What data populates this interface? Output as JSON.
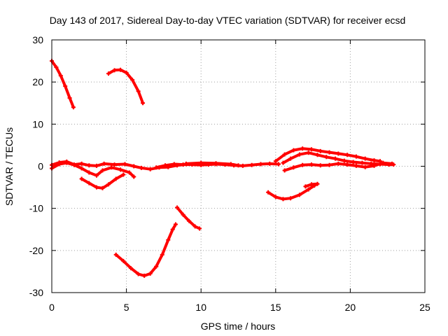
{
  "chart_data": {
    "type": "scatter",
    "title": "Day 143 of 2017, Sidereal Day-to-day VTEC variation (SDTVAR) for receiver ecsd",
    "xlabel": "GPS time / hours",
    "ylabel": "SDTVAR / TECUs",
    "xlim": [
      0,
      25
    ],
    "ylim": [
      -30,
      30
    ],
    "xticks": [
      0,
      5,
      10,
      15,
      20,
      25
    ],
    "yticks": [
      -30,
      -20,
      -10,
      0,
      10,
      20,
      30
    ],
    "xtick_labels": [
      "0",
      "5",
      "10",
      "15",
      "20",
      "25"
    ],
    "ytick_labels": [
      "-30",
      "-20",
      "-10",
      "0",
      "10",
      "20",
      "30"
    ],
    "grid": true,
    "marker_color": "#ff0000",
    "series": [
      {
        "name": "arc-1",
        "points": [
          [
            0.0,
            25.0
          ],
          [
            0.3,
            23.5
          ],
          [
            0.6,
            21.5
          ],
          [
            0.9,
            19.0
          ],
          [
            1.2,
            16.2
          ],
          [
            1.45,
            14.0
          ]
        ]
      },
      {
        "name": "arc-2",
        "points": [
          [
            3.8,
            22.0
          ],
          [
            4.2,
            22.8
          ],
          [
            4.6,
            22.9
          ],
          [
            5.0,
            22.2
          ],
          [
            5.4,
            20.5
          ],
          [
            5.8,
            17.8
          ],
          [
            6.1,
            15.0
          ]
        ]
      },
      {
        "name": "arc-3",
        "points": [
          [
            0.0,
            -0.5
          ],
          [
            0.5,
            0.5
          ],
          [
            1.0,
            0.8
          ],
          [
            1.5,
            0.3
          ],
          [
            2.0,
            -0.5
          ],
          [
            2.5,
            -1.5
          ],
          [
            3.0,
            -2.2
          ],
          [
            3.4,
            -1.0
          ],
          [
            4.0,
            -0.3
          ],
          [
            4.6,
            -0.8
          ],
          [
            5.2,
            -1.5
          ],
          [
            5.5,
            -2.5
          ]
        ]
      },
      {
        "name": "arc-4",
        "points": [
          [
            0.0,
            0.3
          ],
          [
            0.5,
            0.9
          ],
          [
            1.0,
            1.1
          ],
          [
            1.5,
            0.4
          ],
          [
            2.0,
            0.6
          ],
          [
            2.5,
            0.2
          ],
          [
            3.0,
            0.1
          ],
          [
            3.5,
            0.6
          ],
          [
            4.2,
            0.4
          ],
          [
            4.9,
            0.5
          ],
          [
            5.5,
            0.0
          ],
          [
            6.0,
            -0.4
          ],
          [
            6.6,
            -0.7
          ],
          [
            7.2,
            -0.3
          ],
          [
            7.8,
            -0.2
          ],
          [
            8.4,
            0.2
          ],
          [
            9.0,
            0.5
          ],
          [
            9.6,
            0.5
          ]
        ]
      },
      {
        "name": "arc-5",
        "points": [
          [
            2.0,
            -3.0
          ],
          [
            2.5,
            -4.0
          ],
          [
            3.0,
            -5.0
          ],
          [
            3.4,
            -5.2
          ],
          [
            3.8,
            -4.3
          ],
          [
            4.3,
            -3.0
          ],
          [
            4.8,
            -2.0
          ]
        ]
      },
      {
        "name": "arc-6",
        "points": [
          [
            7.0,
            -0.3
          ],
          [
            7.6,
            0.2
          ],
          [
            8.2,
            0.5
          ],
          [
            8.8,
            0.4
          ],
          [
            9.4,
            0.4
          ],
          [
            10.0,
            0.3
          ],
          [
            10.5,
            0.4
          ],
          [
            11.0,
            0.5
          ],
          [
            11.6,
            0.4
          ],
          [
            12.2,
            0.2
          ],
          [
            12.8,
            0.1
          ],
          [
            13.4,
            0.3
          ],
          [
            14.0,
            0.5
          ],
          [
            14.6,
            0.6
          ],
          [
            15.2,
            0.5
          ]
        ]
      },
      {
        "name": "arc-7",
        "points": [
          [
            9.0,
            0.6
          ],
          [
            10.0,
            0.8
          ],
          [
            11.0,
            0.7
          ],
          [
            12.0,
            0.5
          ],
          [
            12.5,
            0.2
          ]
        ]
      },
      {
        "name": "arc-8",
        "points": [
          [
            15.0,
            1.2
          ],
          [
            15.6,
            2.8
          ],
          [
            16.2,
            3.8
          ],
          [
            16.8,
            4.2
          ],
          [
            17.4,
            4.0
          ],
          [
            18.0,
            3.6
          ],
          [
            18.6,
            3.3
          ],
          [
            19.2,
            3.0
          ],
          [
            19.8,
            2.7
          ],
          [
            20.4,
            2.3
          ],
          [
            21.0,
            1.8
          ],
          [
            21.6,
            1.4
          ],
          [
            22.0,
            1.2
          ]
        ]
      },
      {
        "name": "arc-9",
        "points": [
          [
            15.5,
            0.8
          ],
          [
            16.0,
            1.8
          ],
          [
            16.6,
            2.8
          ],
          [
            17.2,
            3.2
          ],
          [
            17.8,
            2.7
          ],
          [
            18.4,
            2.2
          ],
          [
            19.0,
            1.8
          ],
          [
            19.6,
            1.3
          ],
          [
            20.2,
            1.0
          ],
          [
            20.8,
            0.8
          ],
          [
            21.4,
            0.6
          ],
          [
            22.0,
            0.5
          ],
          [
            22.6,
            0.4
          ],
          [
            22.9,
            0.4
          ]
        ]
      },
      {
        "name": "arc-10",
        "points": [
          [
            15.6,
            -1.0
          ],
          [
            16.2,
            -0.3
          ],
          [
            16.8,
            0.3
          ],
          [
            17.4,
            0.4
          ],
          [
            18.0,
            0.2
          ],
          [
            18.6,
            0.3
          ],
          [
            19.2,
            0.6
          ],
          [
            19.8,
            0.4
          ],
          [
            20.4,
            0.1
          ],
          [
            21.0,
            -0.2
          ],
          [
            21.6,
            0.1
          ],
          [
            22.2,
            0.8
          ],
          [
            22.8,
            0.6
          ]
        ]
      },
      {
        "name": "arc-11",
        "points": [
          [
            14.5,
            -6.2
          ],
          [
            15.0,
            -7.3
          ],
          [
            15.5,
            -7.8
          ],
          [
            16.0,
            -7.6
          ],
          [
            16.6,
            -6.8
          ],
          [
            17.2,
            -5.5
          ],
          [
            17.6,
            -4.6
          ]
        ]
      },
      {
        "name": "arc-12",
        "points": [
          [
            17.0,
            -4.8
          ],
          [
            17.4,
            -4.3
          ],
          [
            17.8,
            -4.2
          ]
        ]
      },
      {
        "name": "arc-13",
        "points": [
          [
            4.3,
            -21.0
          ],
          [
            4.8,
            -22.5
          ],
          [
            5.3,
            -24.2
          ],
          [
            5.8,
            -25.6
          ],
          [
            6.2,
            -26.0
          ],
          [
            6.6,
            -25.5
          ],
          [
            7.0,
            -23.8
          ],
          [
            7.4,
            -21.0
          ],
          [
            7.8,
            -17.5
          ],
          [
            8.1,
            -15.0
          ],
          [
            8.3,
            -13.8
          ]
        ]
      },
      {
        "name": "arc-14",
        "points": [
          [
            8.4,
            -9.8
          ],
          [
            8.8,
            -11.5
          ],
          [
            9.2,
            -13.0
          ],
          [
            9.6,
            -14.3
          ],
          [
            9.9,
            -14.8
          ]
        ]
      }
    ]
  }
}
